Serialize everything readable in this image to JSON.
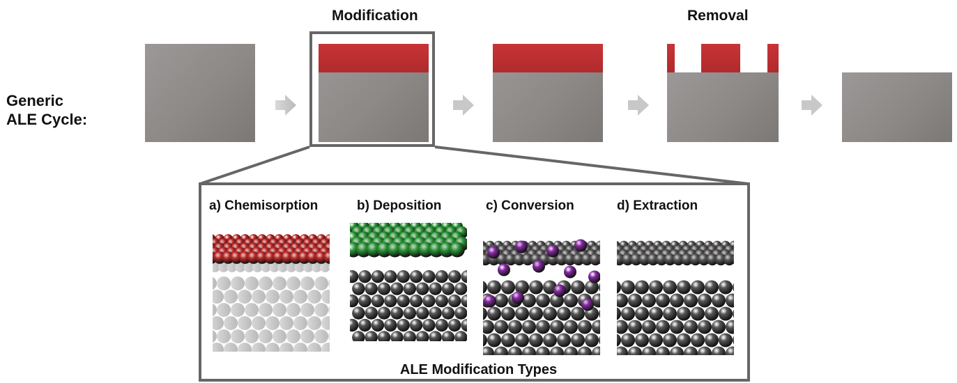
{
  "header": {
    "modification_label": "Modification",
    "removal_label": "Removal"
  },
  "cycle": {
    "label_line1": "Generic",
    "label_line2": "ALE Cycle:"
  },
  "inset": {
    "title": "ALE Modification Types",
    "panels": [
      {
        "label": "a) Chemisorption"
      },
      {
        "label": "b) Deposition"
      },
      {
        "label": "c) Conversion"
      },
      {
        "label": "d) Extraction"
      }
    ]
  },
  "colors": {
    "substrate": "#8f8c8a",
    "modified_layer": "#b9302f",
    "frame": "#666666",
    "arrow": "#c8c8c8",
    "atom_gray": "#5a5858",
    "atom_red": "#c22a2a",
    "atom_green": "#2e9a3a",
    "atom_purple": "#8a2aa8"
  }
}
